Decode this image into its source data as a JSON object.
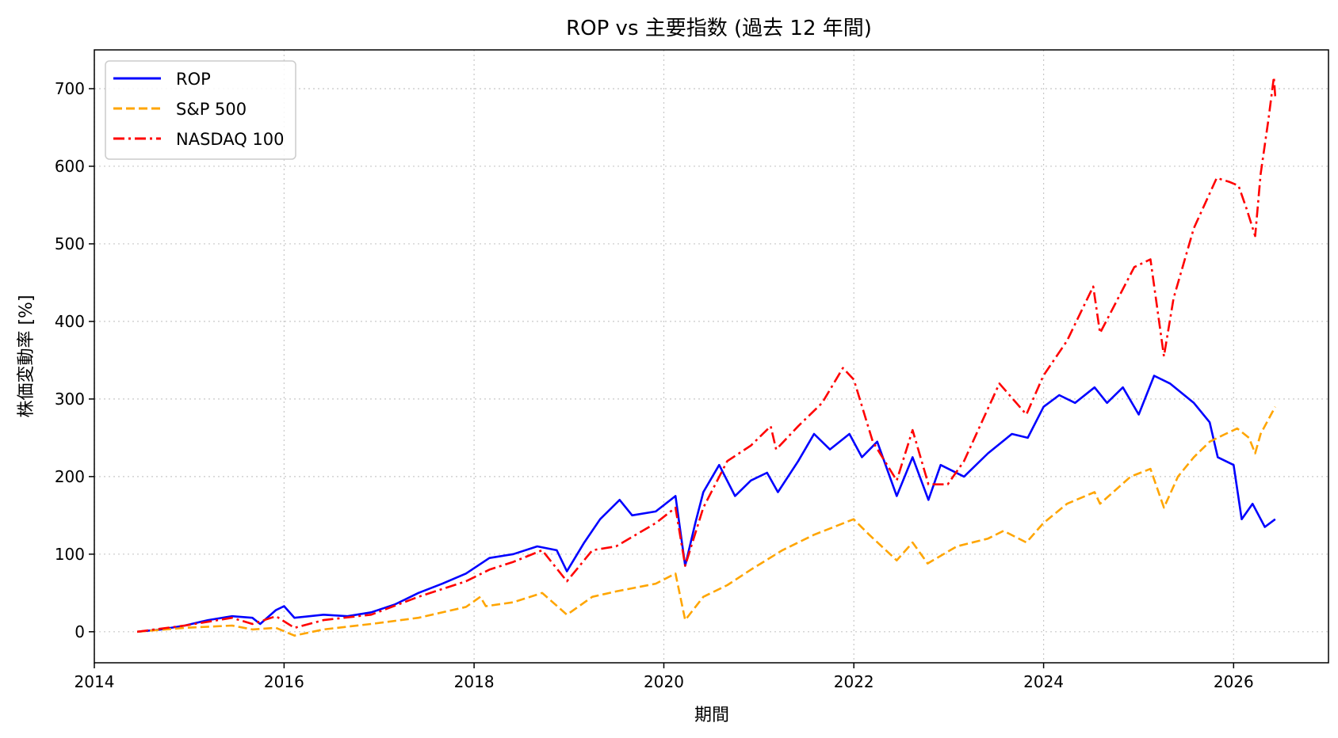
{
  "chart_data": {
    "type": "line",
    "title": "ROP vs 主要指数 (過去 12 年間)",
    "xlabel": "期間",
    "ylabel": "株価変動率 [%]",
    "xlim": [
      "2014-01-01",
      "2027-01-01"
    ],
    "ylim": [
      -40,
      750
    ],
    "x_ticks": [
      "2014",
      "2016",
      "2018",
      "2020",
      "2022",
      "2024",
      "2026"
    ],
    "y_ticks": [
      0,
      100,
      200,
      300,
      400,
      500,
      600,
      700
    ],
    "grid": true,
    "legend_position": "top-left",
    "series": [
      {
        "name": "ROP",
        "color": "#0000ff",
        "style": "solid",
        "points": [
          [
            "2014-06-15",
            0
          ],
          [
            "2014-09-15",
            3
          ],
          [
            "2014-12-15",
            8
          ],
          [
            "2015-03-15",
            15
          ],
          [
            "2015-06-15",
            20
          ],
          [
            "2015-09-01",
            18
          ],
          [
            "2015-10-01",
            10
          ],
          [
            "2015-12-01",
            28
          ],
          [
            "2016-01-01",
            33
          ],
          [
            "2016-02-10",
            18
          ],
          [
            "2016-06-01",
            22
          ],
          [
            "2016-09-01",
            20
          ],
          [
            "2016-12-01",
            25
          ],
          [
            "2017-03-01",
            35
          ],
          [
            "2017-06-01",
            50
          ],
          [
            "2017-09-01",
            62
          ],
          [
            "2017-12-01",
            75
          ],
          [
            "2018-03-01",
            95
          ],
          [
            "2018-06-01",
            100
          ],
          [
            "2018-09-01",
            110
          ],
          [
            "2018-11-15",
            105
          ],
          [
            "2018-12-24",
            78
          ],
          [
            "2019-03-01",
            115
          ],
          [
            "2019-05-01",
            145
          ],
          [
            "2019-07-15",
            170
          ],
          [
            "2019-09-01",
            150
          ],
          [
            "2019-12-01",
            155
          ],
          [
            "2020-02-15",
            175
          ],
          [
            "2020-03-23",
            85
          ],
          [
            "2020-05-01",
            140
          ],
          [
            "2020-06-01",
            180
          ],
          [
            "2020-08-01",
            215
          ],
          [
            "2020-10-01",
            175
          ],
          [
            "2020-12-01",
            195
          ],
          [
            "2021-02-01",
            205
          ],
          [
            "2021-03-15",
            180
          ],
          [
            "2021-06-01",
            220
          ],
          [
            "2021-08-01",
            255
          ],
          [
            "2021-10-01",
            235
          ],
          [
            "2021-12-15",
            255
          ],
          [
            "2022-02-01",
            225
          ],
          [
            "2022-04-01",
            245
          ],
          [
            "2022-06-15",
            175
          ],
          [
            "2022-08-15",
            225
          ],
          [
            "2022-10-15",
            170
          ],
          [
            "2022-12-01",
            215
          ],
          [
            "2023-03-01",
            200
          ],
          [
            "2023-06-01",
            230
          ],
          [
            "2023-09-01",
            255
          ],
          [
            "2023-11-01",
            250
          ],
          [
            "2024-01-01",
            290
          ],
          [
            "2024-03-01",
            305
          ],
          [
            "2024-05-01",
            295
          ],
          [
            "2024-07-15",
            315
          ],
          [
            "2024-09-01",
            295
          ],
          [
            "2024-11-01",
            315
          ],
          [
            "2025-01-01",
            280
          ],
          [
            "2025-03-01",
            330
          ],
          [
            "2025-05-01",
            320
          ],
          [
            "2025-08-01",
            295
          ],
          [
            "2025-10-01",
            270
          ],
          [
            "2025-11-01",
            225
          ],
          [
            "2026-01-01",
            215
          ],
          [
            "2026-02-01",
            145
          ],
          [
            "2026-03-15",
            165
          ],
          [
            "2026-05-01",
            135
          ],
          [
            "2026-06-10",
            145
          ]
        ]
      },
      {
        "name": "S&P 500",
        "color": "#ffa500",
        "style": "dashed",
        "points": [
          [
            "2014-06-15",
            0
          ],
          [
            "2014-12-15",
            5
          ],
          [
            "2015-06-15",
            8
          ],
          [
            "2015-09-01",
            3
          ],
          [
            "2015-12-01",
            5
          ],
          [
            "2016-02-10",
            -5
          ],
          [
            "2016-06-01",
            3
          ],
          [
            "2016-12-01",
            10
          ],
          [
            "2017-06-01",
            18
          ],
          [
            "2017-12-01",
            32
          ],
          [
            "2018-01-25",
            45
          ],
          [
            "2018-02-15",
            33
          ],
          [
            "2018-06-01",
            38
          ],
          [
            "2018-09-20",
            50
          ],
          [
            "2018-12-24",
            22
          ],
          [
            "2019-04-01",
            45
          ],
          [
            "2019-07-01",
            52
          ],
          [
            "2019-12-01",
            62
          ],
          [
            "2020-02-15",
            75
          ],
          [
            "2020-03-23",
            15
          ],
          [
            "2020-06-01",
            45
          ],
          [
            "2020-09-01",
            60
          ],
          [
            "2020-12-01",
            80
          ],
          [
            "2021-04-01",
            105
          ],
          [
            "2021-08-01",
            125
          ],
          [
            "2021-12-31",
            145
          ],
          [
            "2022-03-01",
            125
          ],
          [
            "2022-06-15",
            92
          ],
          [
            "2022-08-15",
            115
          ],
          [
            "2022-10-12",
            88
          ],
          [
            "2023-02-01",
            110
          ],
          [
            "2023-06-01",
            120
          ],
          [
            "2023-07-31",
            130
          ],
          [
            "2023-10-27",
            115
          ],
          [
            "2023-12-31",
            140
          ],
          [
            "2024-03-31",
            165
          ],
          [
            "2024-07-15",
            180
          ],
          [
            "2024-08-05",
            165
          ],
          [
            "2024-12-01",
            200
          ],
          [
            "2025-02-15",
            210
          ],
          [
            "2025-04-08",
            160
          ],
          [
            "2025-06-01",
            200
          ],
          [
            "2025-08-01",
            225
          ],
          [
            "2025-10-01",
            245
          ],
          [
            "2025-12-01",
            255
          ],
          [
            "2026-01-15",
            262
          ],
          [
            "2026-03-01",
            250
          ],
          [
            "2026-03-25",
            230
          ],
          [
            "2026-04-15",
            255
          ],
          [
            "2026-06-10",
            290
          ]
        ]
      },
      {
        "name": "NASDAQ 100",
        "color": "#ff0000",
        "style": "dashdot",
        "points": [
          [
            "2014-06-15",
            0
          ],
          [
            "2014-12-15",
            8
          ],
          [
            "2015-06-15",
            18
          ],
          [
            "2015-09-01",
            10
          ],
          [
            "2015-12-01",
            20
          ],
          [
            "2016-02-10",
            5
          ],
          [
            "2016-06-01",
            15
          ],
          [
            "2016-12-01",
            22
          ],
          [
            "2017-06-01",
            45
          ],
          [
            "2017-12-01",
            65
          ],
          [
            "2018-03-01",
            80
          ],
          [
            "2018-06-01",
            90
          ],
          [
            "2018-09-20",
            105
          ],
          [
            "2018-12-24",
            65
          ],
          [
            "2019-04-01",
            105
          ],
          [
            "2019-07-01",
            110
          ],
          [
            "2019-12-01",
            140
          ],
          [
            "2020-02-15",
            160
          ],
          [
            "2020-03-23",
            85
          ],
          [
            "2020-06-01",
            160
          ],
          [
            "2020-09-01",
            220
          ],
          [
            "2020-12-01",
            240
          ],
          [
            "2021-02-15",
            265
          ],
          [
            "2021-03-08",
            235
          ],
          [
            "2021-06-01",
            265
          ],
          [
            "2021-09-01",
            295
          ],
          [
            "2021-11-20",
            340
          ],
          [
            "2022-01-01",
            325
          ],
          [
            "2022-03-15",
            245
          ],
          [
            "2022-06-15",
            195
          ],
          [
            "2022-08-15",
            260
          ],
          [
            "2022-10-15",
            190
          ],
          [
            "2022-12-28",
            190
          ],
          [
            "2023-03-01",
            220
          ],
          [
            "2023-07-15",
            320
          ],
          [
            "2023-10-27",
            280
          ],
          [
            "2023-12-31",
            330
          ],
          [
            "2024-03-31",
            375
          ],
          [
            "2024-07-10",
            445
          ],
          [
            "2024-08-05",
            385
          ],
          [
            "2024-12-15",
            470
          ],
          [
            "2025-02-15",
            480
          ],
          [
            "2025-04-08",
            355
          ],
          [
            "2025-05-15",
            430
          ],
          [
            "2025-08-01",
            520
          ],
          [
            "2025-10-28",
            585
          ],
          [
            "2025-12-15",
            580
          ],
          [
            "2026-01-20",
            575
          ],
          [
            "2026-02-20",
            545
          ],
          [
            "2026-03-25",
            510
          ],
          [
            "2026-04-15",
            590
          ],
          [
            "2026-05-15",
            660
          ],
          [
            "2026-06-05",
            715
          ],
          [
            "2026-06-10",
            690
          ]
        ]
      }
    ]
  }
}
